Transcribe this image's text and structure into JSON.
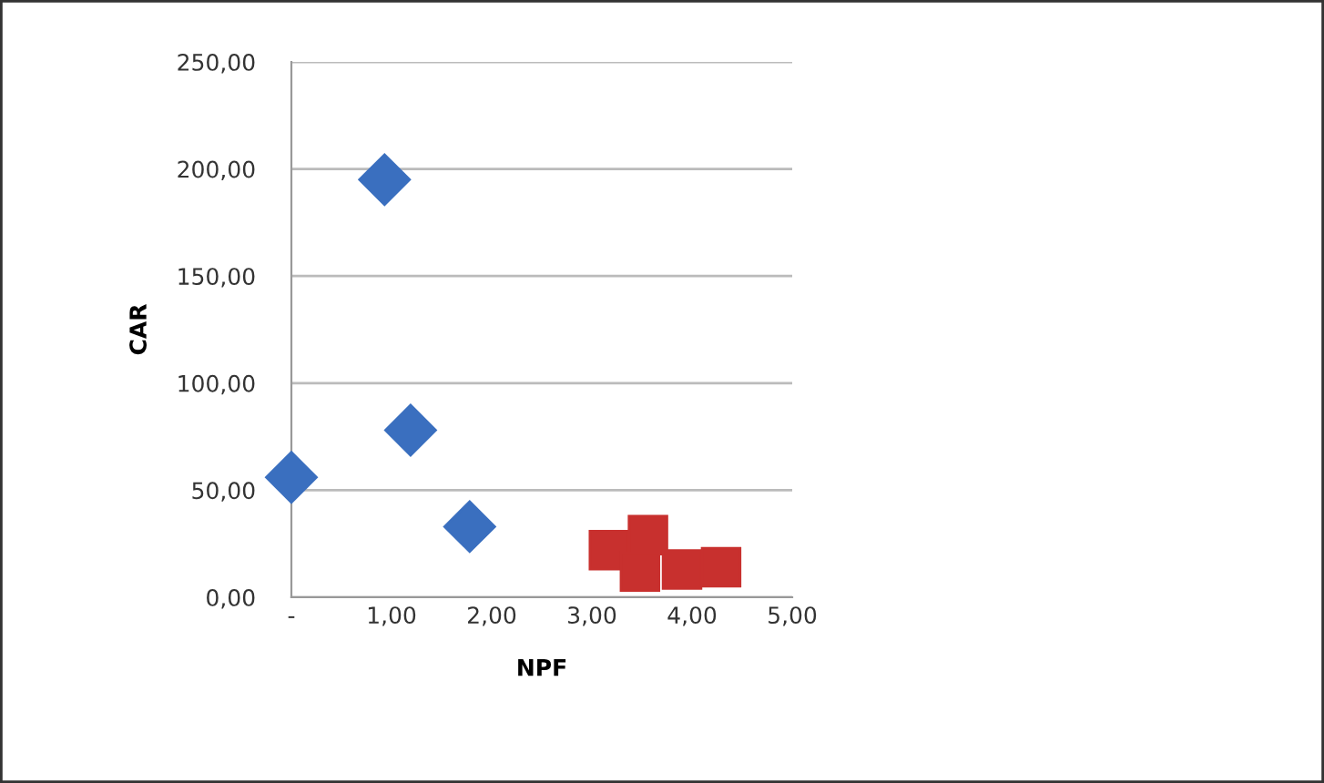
{
  "chart_data": {
    "type": "scatter",
    "xlabel": "NPF",
    "ylabel": "CAR",
    "series": [
      {
        "color": "#3a6fbf",
        "marker": "diamond",
        "x": [
          0,
          0.93,
          1.19,
          1.78
        ],
        "values": [
          56,
          195,
          78,
          33
        ]
      },
      {
        "color": "#c8302e",
        "marker": "square",
        "x": [
          3.17,
          3.56,
          3.9,
          4.29,
          3.48
        ],
        "values": [
          22,
          29,
          13,
          14,
          12
        ]
      }
    ],
    "xlim": [
      0,
      5
    ],
    "xticks": [
      {
        "value": 0,
        "label": "-"
      },
      {
        "value": 1,
        "label": "1,00"
      },
      {
        "value": 2,
        "label": "2,00"
      },
      {
        "value": 3,
        "label": "3,00"
      },
      {
        "value": 4,
        "label": "4,00"
      },
      {
        "value": 5,
        "label": "5,00"
      }
    ],
    "ylim": [
      0,
      250
    ],
    "yticks": [
      {
        "value": 0,
        "label": "0,00"
      },
      {
        "value": 50,
        "label": "50,00"
      },
      {
        "value": 100,
        "label": "100,00"
      },
      {
        "value": 150,
        "label": "150,00"
      },
      {
        "value": 200,
        "label": "200,00"
      },
      {
        "value": 250,
        "label": "250,00"
      }
    ],
    "grid": "y"
  }
}
